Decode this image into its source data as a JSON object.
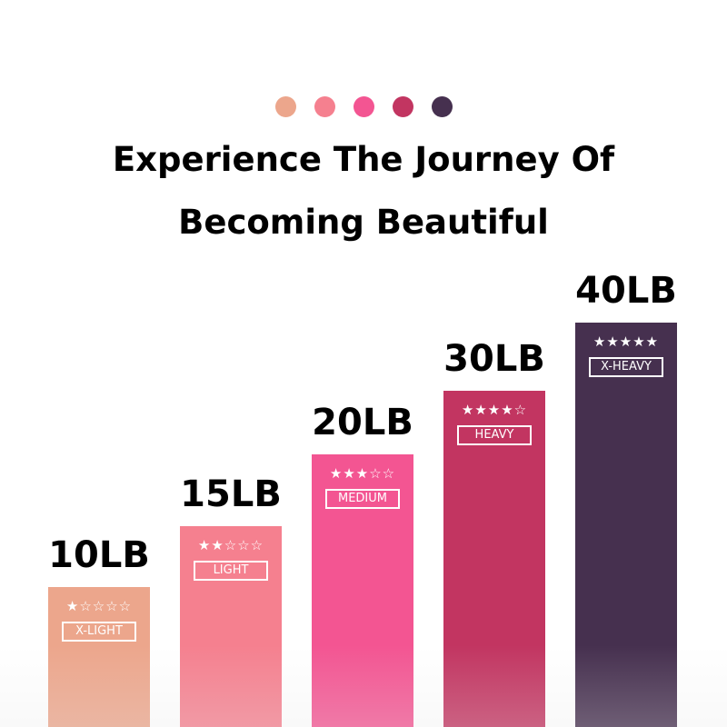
{
  "header": {
    "dot_colors": [
      "#eca68c",
      "#f5808f",
      "#f35592",
      "#c23561",
      "#46304f"
    ],
    "title_line1": "Experience The Journey Of",
    "title_line2": "Becoming Beautiful"
  },
  "chart_data": {
    "type": "bar",
    "categories": [
      "X-LIGHT",
      "LIGHT",
      "MEDIUM",
      "HEAVY",
      "X-HEAVY"
    ],
    "value_labels": [
      "10LB",
      "15LB",
      "20LB",
      "30LB",
      "40LB"
    ],
    "values": [
      10,
      15,
      20,
      30,
      40
    ],
    "unit": "LB",
    "star_ratings": [
      1,
      2,
      3,
      4,
      5
    ],
    "star_max": 5,
    "colors": [
      "#eca68c",
      "#f5808f",
      "#f35592",
      "#c23561",
      "#46304f"
    ],
    "grid": false
  }
}
